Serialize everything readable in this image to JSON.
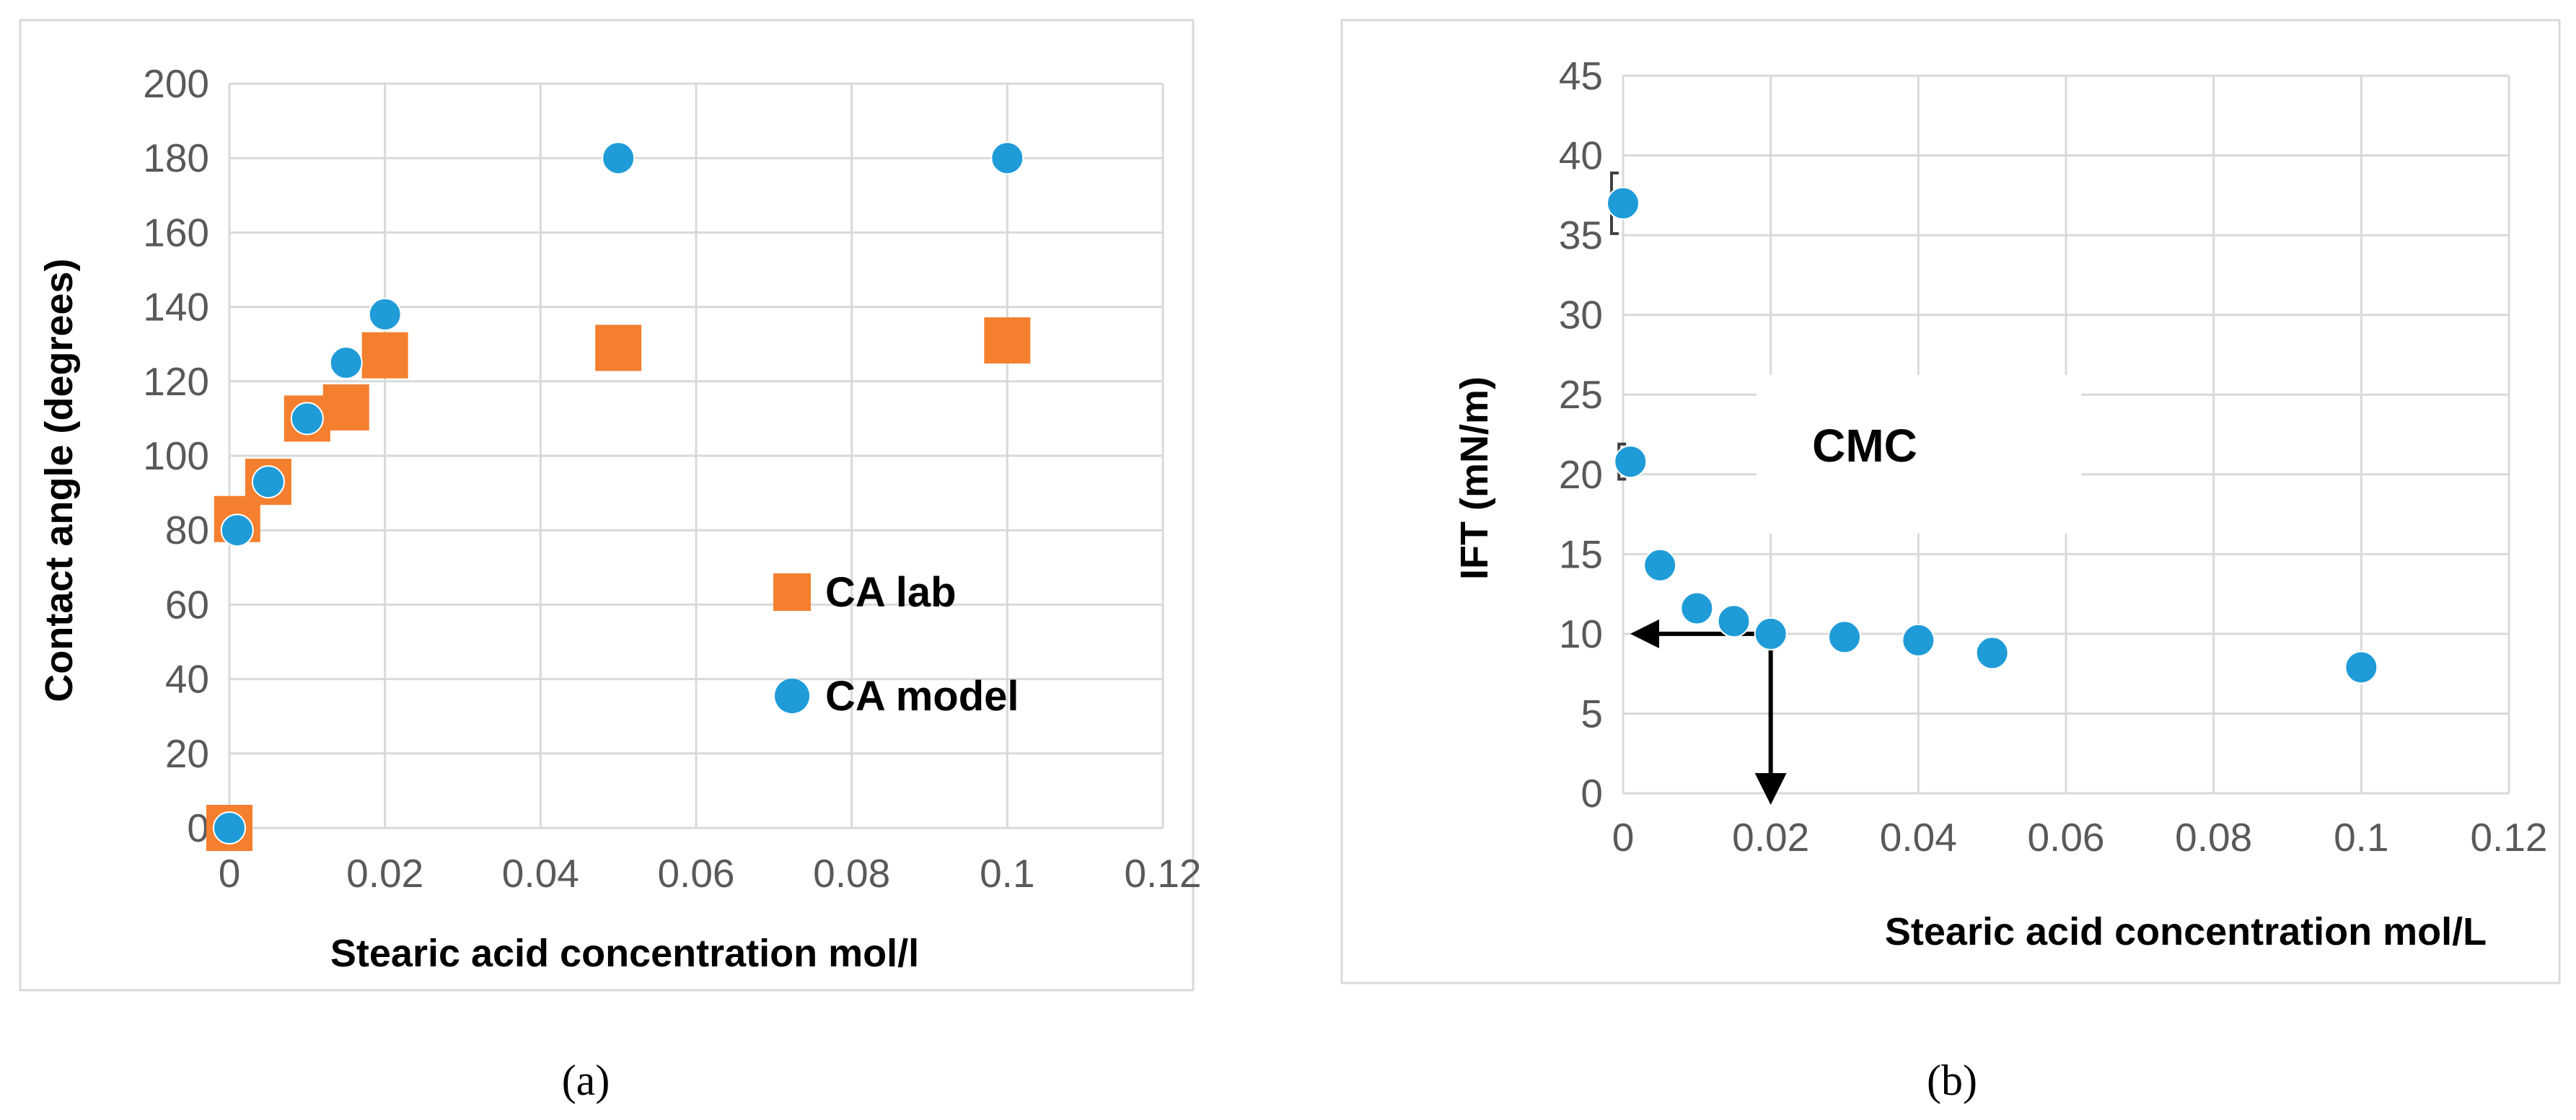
{
  "chart_data": [
    {
      "type": "scatter",
      "panel": "(a)",
      "caption": "(a)",
      "xlabel": "Stearic acid concentration mol/l",
      "ylabel": "Contact angle (degrees)",
      "xlim": [
        0,
        0.12
      ],
      "ylim": [
        0,
        200
      ],
      "xticks": [
        "0",
        "0.02",
        "0.04",
        "0.06",
        "0.08",
        "0.1",
        "0.12"
      ],
      "yticks": [
        "0",
        "20",
        "40",
        "60",
        "80",
        "100",
        "120",
        "140",
        "160",
        "180",
        "200"
      ],
      "grid": true,
      "legend_position": "right",
      "series": [
        {
          "name": "CA lab",
          "marker": "square",
          "color": "#F47F2E",
          "x": [
            0,
            0.001,
            0.005,
            0.01,
            0.015,
            0.02,
            0.05,
            0.1
          ],
          "y": [
            0,
            83,
            93,
            110,
            113,
            127,
            129,
            131
          ]
        },
        {
          "name": "CA model",
          "marker": "circle",
          "color": "#1F9BD8",
          "x": [
            0,
            0.001,
            0.005,
            0.01,
            0.015,
            0.02,
            0.05,
            0.1
          ],
          "y": [
            0,
            80,
            93,
            110,
            125,
            138,
            180,
            180
          ]
        }
      ]
    },
    {
      "type": "scatter",
      "panel": "(b)",
      "caption": "(b)",
      "xlabel": "Stearic acid  concentration mol/L",
      "ylabel": "IFT (mN/m)",
      "xlim": [
        0,
        0.12
      ],
      "ylim": [
        0,
        45
      ],
      "xticks": [
        "0",
        "0.02",
        "0.04",
        "0.06",
        "0.08",
        "0.1",
        "0.12"
      ],
      "yticks": [
        "0",
        "5",
        "10",
        "15",
        "20",
        "25",
        "30",
        "35",
        "40",
        "45"
      ],
      "grid": true,
      "annotation": "CMC",
      "cmc_point": {
        "x": 0.02,
        "y": 10
      },
      "series": [
        {
          "name": "IFT",
          "marker": "circle",
          "color": "#1F9BD8",
          "x": [
            0,
            0.001,
            0.005,
            0.01,
            0.015,
            0.02,
            0.03,
            0.04,
            0.05,
            0.1
          ],
          "y": [
            37,
            20.8,
            14.3,
            11.6,
            10.8,
            10,
            9.8,
            9.6,
            8.8,
            7.9
          ],
          "error": [
            1.9,
            1.1,
            0.5,
            0,
            0,
            0,
            0,
            0,
            0,
            0
          ]
        }
      ]
    }
  ]
}
